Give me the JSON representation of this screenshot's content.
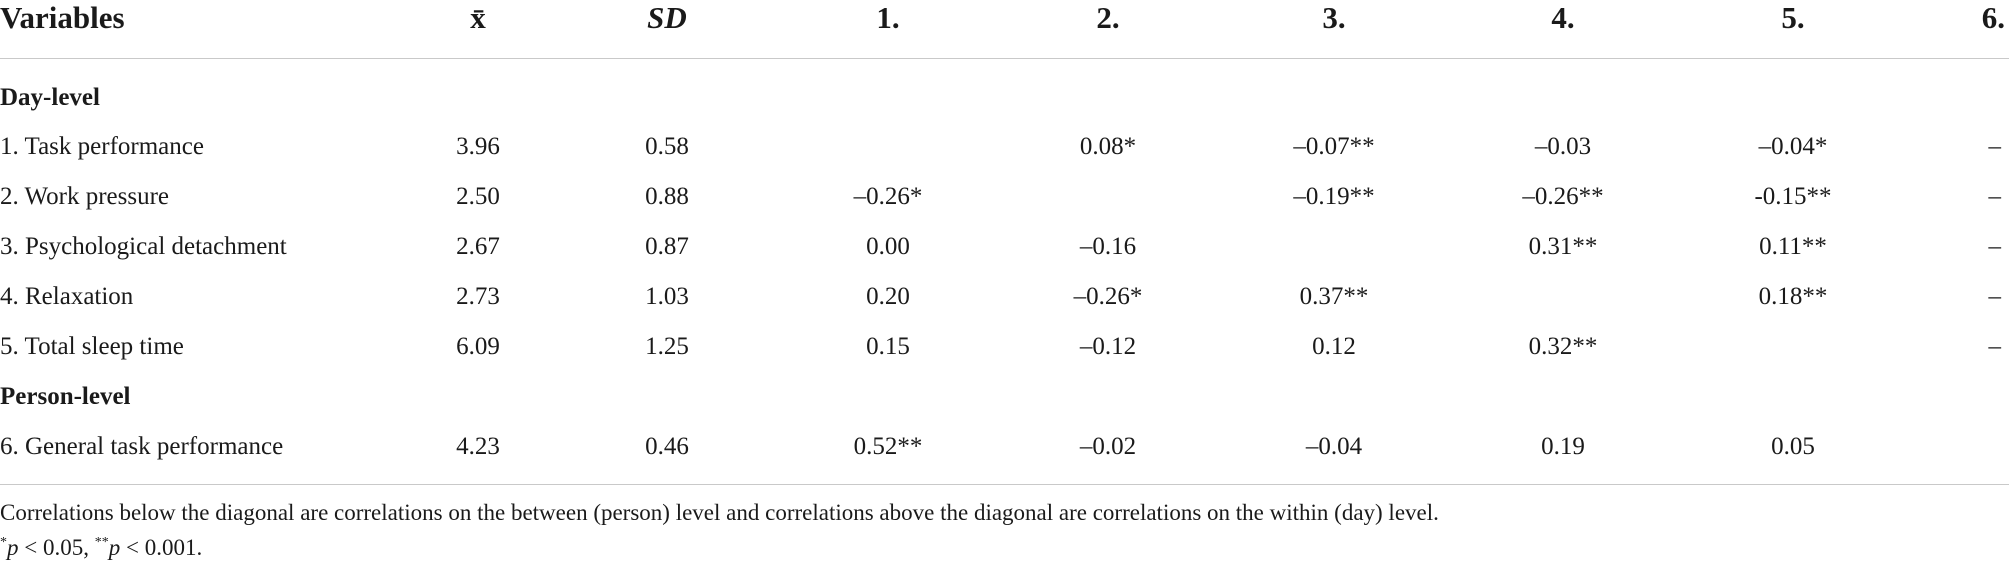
{
  "header": {
    "variables": "Variables",
    "mean": "x̄",
    "sd": "SD",
    "cols": [
      "1.",
      "2.",
      "3.",
      "4.",
      "5.",
      "6."
    ]
  },
  "sections": {
    "day": "Day-level",
    "person": "Person-level"
  },
  "day_rows": [
    {
      "label": "1. Task performance",
      "mean": "3.96",
      "sd": "0.58",
      "c": [
        "",
        "0.08*",
        "–0.07**",
        "–0.03",
        "–0.04*",
        "–"
      ]
    },
    {
      "label": "2. Work pressure",
      "mean": "2.50",
      "sd": "0.88",
      "c": [
        "–0.26*",
        "",
        "–0.19**",
        "–0.26**",
        "-0.15**",
        "–"
      ]
    },
    {
      "label": "3. Psychological detachment",
      "mean": "2.67",
      "sd": "0.87",
      "c": [
        "0.00",
        "–0.16",
        "",
        "0.31**",
        "0.11**",
        "–"
      ]
    },
    {
      "label": "4. Relaxation",
      "mean": "2.73",
      "sd": "1.03",
      "c": [
        "0.20",
        "–0.26*",
        "0.37**",
        "",
        "0.18**",
        "–"
      ]
    },
    {
      "label": "5. Total sleep time",
      "mean": "6.09",
      "sd": "1.25",
      "c": [
        "0.15",
        "–0.12",
        "0.12",
        "0.32**",
        "",
        "–"
      ]
    }
  ],
  "person_rows": [
    {
      "label": "6. General task performance",
      "mean": "4.23",
      "sd": "0.46",
      "c": [
        "0.52**",
        "–0.02",
        "–0.04",
        "0.19",
        "0.05",
        ""
      ]
    }
  ],
  "notes": {
    "line1": "Correlations below the diagonal are correlations on the between (person) level and correlations above the diagonal are correlations on the within (day) level.",
    "star1": "*",
    "p1": "p",
    "t1": " < 0.05, ",
    "star2": "**",
    "p2": "p",
    "t2": " < 0.001."
  }
}
